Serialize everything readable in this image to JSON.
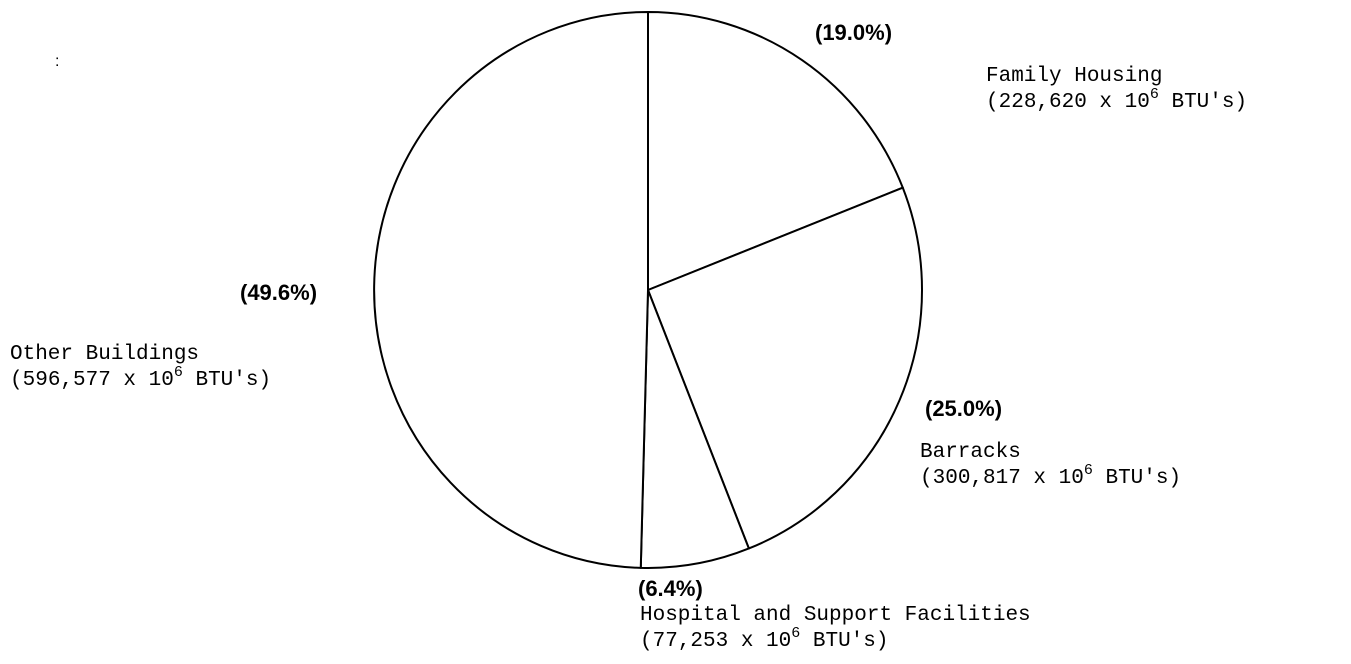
{
  "chart_data": {
    "type": "pie",
    "unit": "10^6 BTU's",
    "slices": [
      {
        "label": "Family Housing",
        "value": 228620,
        "percent": 19.0,
        "percent_text": "(19.0%)",
        "value_text": "228,620"
      },
      {
        "label": "Barracks",
        "value": 300817,
        "percent": 25.0,
        "percent_text": "(25.0%)",
        "value_text": "300,817"
      },
      {
        "label": "Hospital and Support Facilities",
        "value": 77253,
        "percent": 6.4,
        "percent_text": "(6.4%)",
        "value_text": "77,253"
      },
      {
        "label": "Other Buildings",
        "value": 596577,
        "percent": 49.6,
        "percent_text": "(49.6%)",
        "value_text": "596,577"
      }
    ],
    "fill": "#ffffff",
    "stroke": "#000000",
    "start": "12 o'clock",
    "direction": "clockwise"
  },
  "stray_mark": ":"
}
